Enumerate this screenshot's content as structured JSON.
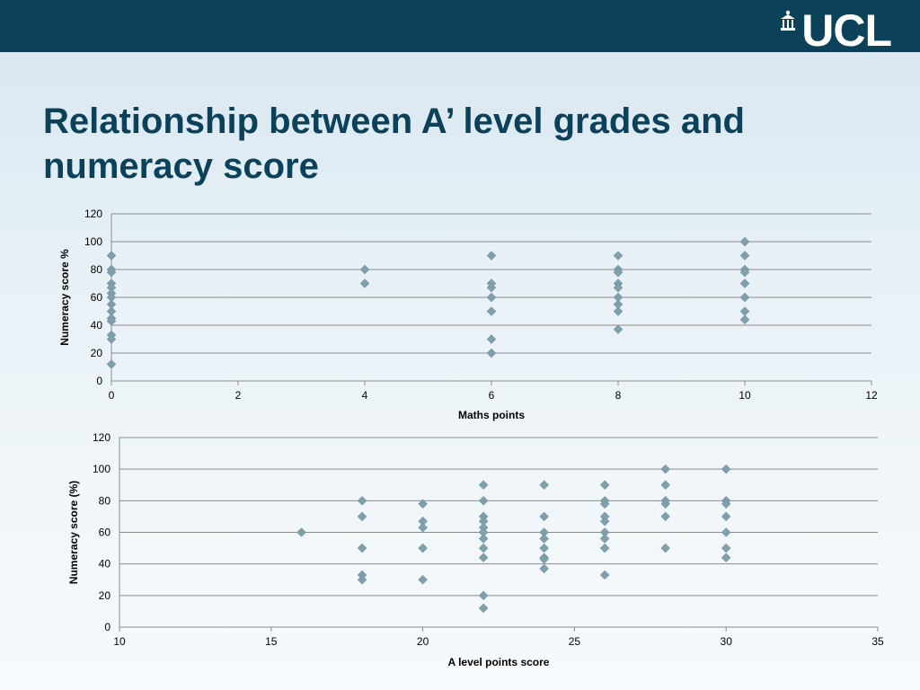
{
  "header": {
    "logo_text": "UCL",
    "bar_color": "#0b4259"
  },
  "slide": {
    "title_line1": "Relationship between A’ level grades and",
    "title_line2": "numeracy score",
    "title_color": "#0b4259"
  },
  "chart_data": [
    {
      "type": "scatter",
      "xlabel": "Maths points",
      "ylabel": "Numeracy score %",
      "xlim": [
        0,
        12
      ],
      "ylim": [
        0,
        120
      ],
      "xticks": [
        0,
        2,
        4,
        6,
        8,
        10,
        12
      ],
      "yticks": [
        0,
        20,
        40,
        60,
        80,
        100,
        120
      ],
      "grid": "horizontal",
      "marker_color": "#7f9fac",
      "points": [
        [
          0,
          90
        ],
        [
          0,
          80
        ],
        [
          0,
          78
        ],
        [
          0,
          70
        ],
        [
          0,
          67
        ],
        [
          0,
          63
        ],
        [
          0,
          60
        ],
        [
          0,
          55
        ],
        [
          0,
          50
        ],
        [
          0,
          45
        ],
        [
          0,
          43
        ],
        [
          0,
          33
        ],
        [
          0,
          30
        ],
        [
          0,
          12
        ],
        [
          4,
          80
        ],
        [
          4,
          70
        ],
        [
          6,
          90
        ],
        [
          6,
          70
        ],
        [
          6,
          67
        ],
        [
          6,
          60
        ],
        [
          6,
          50
        ],
        [
          6,
          30
        ],
        [
          6,
          20
        ],
        [
          8,
          90
        ],
        [
          8,
          80
        ],
        [
          8,
          78
        ],
        [
          8,
          70
        ],
        [
          8,
          67
        ],
        [
          8,
          60
        ],
        [
          8,
          55
        ],
        [
          8,
          50
        ],
        [
          8,
          37
        ],
        [
          10,
          100
        ],
        [
          10,
          90
        ],
        [
          10,
          80
        ],
        [
          10,
          78
        ],
        [
          10,
          70
        ],
        [
          10,
          60
        ],
        [
          10,
          50
        ],
        [
          10,
          44
        ]
      ]
    },
    {
      "type": "scatter",
      "xlabel": "A level points score",
      "ylabel": "Numeracy score (%)",
      "xlim": [
        10,
        35
      ],
      "ylim": [
        0,
        120
      ],
      "xticks": [
        10,
        15,
        20,
        25,
        30,
        35
      ],
      "yticks": [
        0,
        20,
        40,
        60,
        80,
        100,
        120
      ],
      "grid": "horizontal",
      "marker_color": "#7f9fac",
      "points": [
        [
          16,
          60
        ],
        [
          18,
          80
        ],
        [
          18,
          70
        ],
        [
          18,
          50
        ],
        [
          18,
          33
        ],
        [
          18,
          30
        ],
        [
          20,
          78
        ],
        [
          20,
          67
        ],
        [
          20,
          63
        ],
        [
          20,
          50
        ],
        [
          20,
          30
        ],
        [
          22,
          90
        ],
        [
          22,
          80
        ],
        [
          22,
          70
        ],
        [
          22,
          67
        ],
        [
          22,
          63
        ],
        [
          22,
          60
        ],
        [
          22,
          56
        ],
        [
          22,
          50
        ],
        [
          22,
          44
        ],
        [
          22,
          20
        ],
        [
          22,
          12
        ],
        [
          24,
          90
        ],
        [
          24,
          70
        ],
        [
          24,
          60
        ],
        [
          24,
          56
        ],
        [
          24,
          50
        ],
        [
          24,
          44
        ],
        [
          24,
          43
        ],
        [
          24,
          37
        ],
        [
          26,
          90
        ],
        [
          26,
          80
        ],
        [
          26,
          78
        ],
        [
          26,
          70
        ],
        [
          26,
          67
        ],
        [
          26,
          60
        ],
        [
          26,
          56
        ],
        [
          26,
          50
        ],
        [
          26,
          33
        ],
        [
          28,
          100
        ],
        [
          28,
          90
        ],
        [
          28,
          80
        ],
        [
          28,
          78
        ],
        [
          28,
          70
        ],
        [
          28,
          50
        ],
        [
          30,
          100
        ],
        [
          30,
          80
        ],
        [
          30,
          78
        ],
        [
          30,
          70
        ],
        [
          30,
          60
        ],
        [
          30,
          50
        ],
        [
          30,
          44
        ]
      ]
    }
  ]
}
